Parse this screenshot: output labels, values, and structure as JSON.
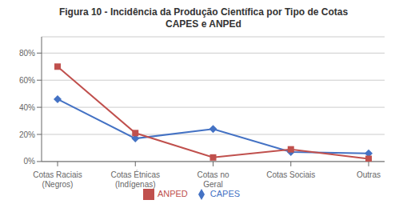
{
  "chart_data": {
    "type": "line",
    "title": "Figura 10 - Incidência da Produção Científica por Tipo de Cotas",
    "subtitle": "CAPES e ANPEd",
    "categories": [
      "Cotas Raciais\n(Negros)",
      "Cotas Étnicas\n(Indígenas)",
      "Cotas no\nGeral",
      "Cotas Sociais",
      "Outras"
    ],
    "series": [
      {
        "name": "CAPES",
        "color": "#4472C4",
        "marker": "diamond",
        "values": [
          0.46,
          0.17,
          0.24,
          0.07,
          0.06
        ]
      },
      {
        "name": "ANPED",
        "color": "#C0504D",
        "marker": "square",
        "values": [
          0.7,
          0.21,
          0.03,
          0.09,
          0.02
        ]
      }
    ],
    "ylim": [
      0,
      0.92
    ],
    "yticks": [
      {
        "value": 0.0,
        "label": "0%"
      },
      {
        "value": 0.2,
        "label": "20%"
      },
      {
        "value": 0.4,
        "label": "40%"
      },
      {
        "value": 0.6,
        "label": "60%"
      },
      {
        "value": 0.8,
        "label": "80%"
      }
    ],
    "grid": true,
    "legend": "bottom"
  }
}
